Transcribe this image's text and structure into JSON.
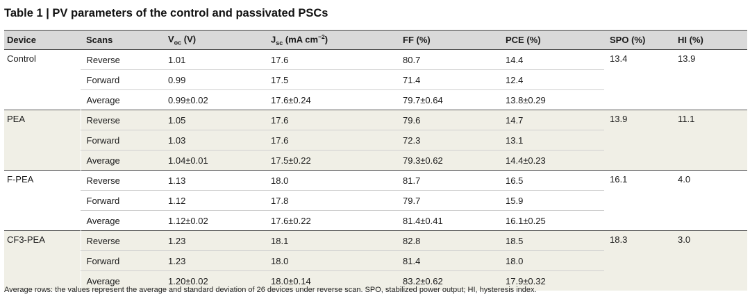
{
  "title": "Table 1 | PV parameters of the control and passivated PSCs",
  "headers": {
    "device": "Device",
    "scans": "Scans",
    "voc_main": "V",
    "voc_sub": "oc",
    "voc_unit": " (V)",
    "jsc_main": "J",
    "jsc_sub": "sc",
    "jsc_unit": " (mA cm",
    "jsc_sup": "−2",
    "jsc_close": ")",
    "ff": "FF (%)",
    "pce": "PCE (%)",
    "spo": "SPO (%)",
    "hi": "HI (%)"
  },
  "groups": [
    {
      "device": "Control",
      "spo": "13.4",
      "hi": "13.9",
      "rows": [
        {
          "scan": "Reverse",
          "voc": "1.01",
          "jsc": "17.6",
          "ff": "80.7",
          "pce": "14.4"
        },
        {
          "scan": "Forward",
          "voc": "0.99",
          "jsc": "17.5",
          "ff": "71.4",
          "pce": "12.4"
        },
        {
          "scan": "Average",
          "voc": "0.99±0.02",
          "jsc": "17.6±0.24",
          "ff": "79.7±0.64",
          "pce": "13.8±0.29"
        }
      ]
    },
    {
      "device": "PEA",
      "spo": "13.9",
      "hi": "11.1",
      "rows": [
        {
          "scan": "Reverse",
          "voc": "1.05",
          "jsc": "17.6",
          "ff": "79.6",
          "pce": "14.7"
        },
        {
          "scan": "Forward",
          "voc": "1.03",
          "jsc": "17.6",
          "ff": "72.3",
          "pce": "13.1"
        },
        {
          "scan": "Average",
          "voc": "1.04±0.01",
          "jsc": "17.5±0.22",
          "ff": "79.3±0.62",
          "pce": "14.4±0.23"
        }
      ]
    },
    {
      "device": "F-PEA",
      "spo": "16.1",
      "hi": "4.0",
      "rows": [
        {
          "scan": "Reverse",
          "voc": "1.13",
          "jsc": "18.0",
          "ff": "81.7",
          "pce": "16.5"
        },
        {
          "scan": "Forward",
          "voc": "1.12",
          "jsc": "17.8",
          "ff": "79.7",
          "pce": "15.9"
        },
        {
          "scan": "Average",
          "voc": "1.12±0.02",
          "jsc": "17.6±0.22",
          "ff": "81.4±0.41",
          "pce": "16.1±0.25"
        }
      ]
    },
    {
      "device": "CF3-PEA",
      "spo": "18.3",
      "hi": "3.0",
      "rows": [
        {
          "scan": "Reverse",
          "voc": "1.23",
          "jsc": "18.1",
          "ff": "82.8",
          "pce": "18.5"
        },
        {
          "scan": "Forward",
          "voc": "1.23",
          "jsc": "18.0",
          "ff": "81.4",
          "pce": "18.0"
        },
        {
          "scan": "Average",
          "voc": "1.20±0.02",
          "jsc": "18.0±0.14",
          "ff": "83.2±0.62",
          "pce": "17.9±0.32"
        }
      ]
    }
  ],
  "footnote": "Average rows: the values represent the average and standard deviation of 26 devices under reverse scan. SPO, stabilized power output; HI, hysteresis index.",
  "colors": {
    "header_bg": "#d9d9d9",
    "shade_bg": "#f0efe6"
  }
}
